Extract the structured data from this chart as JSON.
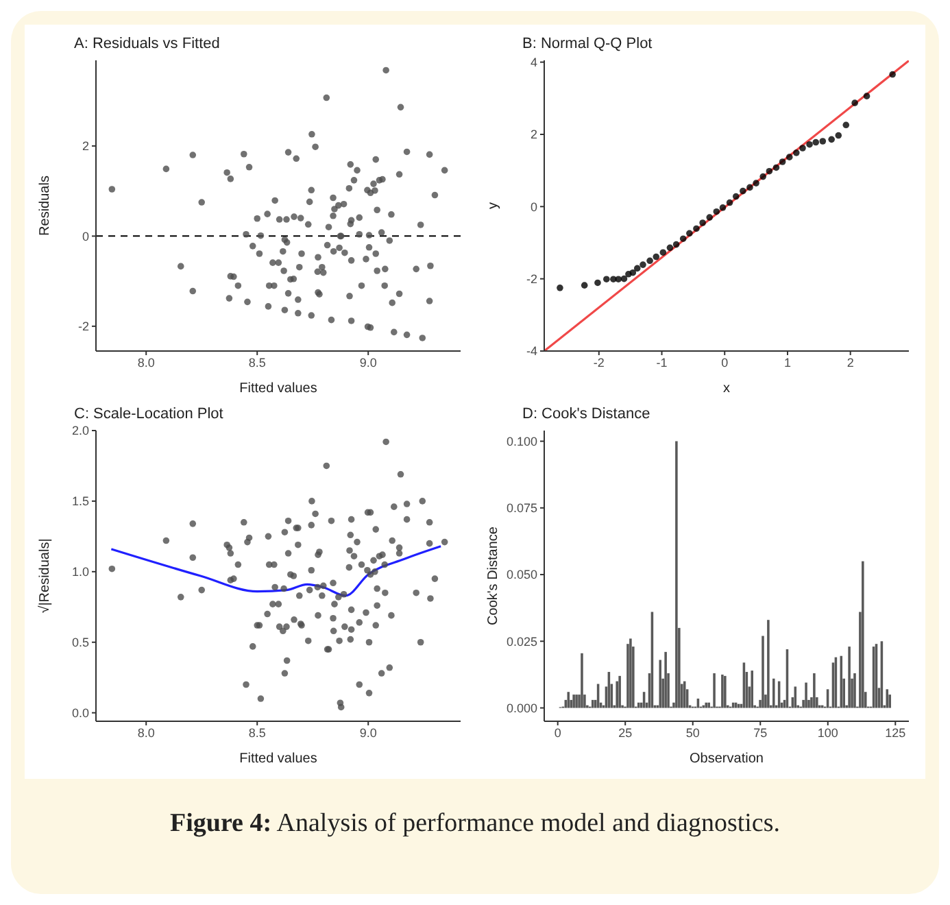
{
  "chart_data": [
    {
      "type": "scatter",
      "title": "A: Residuals vs Fitted",
      "xlabel": "Fitted values",
      "ylabel": "Residuals",
      "xlim": [
        7.774,
        9.416
      ],
      "ylim": [
        -2.55,
        3.9
      ],
      "xticks": [
        {
          "value": 8,
          "label": "8.0"
        },
        {
          "value": 8.5,
          "label": "8.5"
        },
        {
          "value": 9,
          "label": "9.0"
        }
      ],
      "yticks": [
        -2,
        0,
        2
      ],
      "grid": false,
      "legend": false,
      "marker": "circle",
      "ref_lines": [
        {
          "axis": "y",
          "value": 0,
          "color": "#000000",
          "line_style": "dashed"
        }
      ],
      "series": [
        {
          "color": "#4d4d4d",
          "x": [
            7.846,
            8.09,
            8.21,
            8.25,
            8.156,
            8.21,
            8.364,
            8.38,
            8.44,
            8.464,
            8.45,
            8.38,
            8.394,
            8.414,
            8.374,
            8.456,
            8.5,
            8.516,
            8.48,
            8.51,
            8.546,
            8.58,
            8.554,
            8.576,
            8.55,
            8.57,
            8.596,
            8.6,
            8.632,
            8.624,
            8.634,
            8.616,
            8.62,
            8.65,
            8.64,
            8.624,
            8.64,
            8.676,
            8.666,
            8.696,
            8.664,
            8.69,
            8.7,
            8.684,
            8.684,
            8.73,
            8.736,
            8.744,
            8.746,
            8.762,
            8.744,
            8.774,
            8.772,
            8.792,
            8.798,
            8.774,
            8.78,
            8.812,
            8.822,
            8.816,
            8.842,
            8.842,
            8.848,
            8.844,
            8.834,
            8.866,
            8.89,
            8.874,
            8.878,
            8.87,
            8.894,
            8.92,
            8.95,
            8.914,
            8.936,
            8.924,
            8.92,
            8.924,
            8.916,
            8.924,
            8.96,
            8.96,
            8.97,
            8.996,
            9.01,
            9.024,
            9.03,
            9.034,
            9.04,
            9.004,
            9.004,
            8.99,
            9.034,
            9.04,
            8.998,
            9.01,
            9.05,
            9.064,
            9.06,
            9.076,
            9.074,
            9.08,
            9.096,
            9.104,
            9.108,
            9.116,
            9.14,
            9.14,
            9.146,
            9.174,
            9.174,
            9.216,
            9.236,
            9.244,
            9.276,
            9.28,
            9.276,
            9.3,
            9.344
          ],
          "values": [
            1.04,
            1.49,
            1.8,
            0.75,
            -0.67,
            -1.22,
            1.41,
            1.27,
            1.82,
            1.53,
            0.04,
            -0.89,
            -0.9,
            -1.1,
            -1.38,
            -1.46,
            0.39,
            0.01,
            -0.22,
            -0.39,
            0.49,
            0.79,
            -1.1,
            -1.1,
            -1.56,
            -0.59,
            -0.59,
            0.37,
            0.37,
            -0.08,
            -0.14,
            -0.34,
            -0.77,
            -0.96,
            -1.27,
            -1.64,
            1.86,
            1.72,
            0.43,
            0.4,
            -0.95,
            -0.69,
            -0.39,
            -1.41,
            -1.71,
            0.26,
            0.76,
            1.02,
            2.26,
            1.98,
            -1.76,
            -0.47,
            -0.79,
            -0.69,
            -0.81,
            -1.25,
            -1.29,
            3.07,
            0.2,
            -0.2,
            0.85,
            0.45,
            0.6,
            -0.34,
            -1.86,
            0.68,
            0.71,
            0,
            0,
            -0.26,
            -0.37,
            1.59,
            1.46,
            1.06,
            1.24,
            0.35,
            0.27,
            -0.54,
            -1.33,
            -1.88,
            0.41,
            0.04,
            -1.1,
            1.02,
            0.96,
            1.16,
            1.01,
            1.7,
            0.58,
            0.02,
            -0.25,
            -0.51,
            -0.39,
            -0.77,
            -2.01,
            -2.03,
            1.24,
            1.26,
            0.08,
            -0.73,
            -1.1,
            3.68,
            -0.1,
            0.48,
            -1.48,
            -2.13,
            1.37,
            -1.28,
            2.86,
            1.87,
            -2.19,
            -0.73,
            0.25,
            -2.26,
            1.81,
            -0.66,
            -1.44,
            0.91,
            1.46
          ]
        }
      ]
    },
    {
      "type": "scatter",
      "title": "B: Normal Q-Q Plot",
      "xlabel": "x",
      "ylabel": "y",
      "xlim": [
        -2.87,
        2.93
      ],
      "ylim": [
        -4,
        4.05
      ],
      "xticks": [
        -2,
        -1,
        0,
        1,
        2
      ],
      "yticks": [
        -4,
        -2,
        0,
        2,
        4
      ],
      "grid": false,
      "legend": false,
      "marker": "circle",
      "series": [
        {
          "color": "#000000",
          "x": [
            -2.62,
            -2.23,
            -2.02,
            -1.88,
            -1.77,
            -1.69,
            -1.6,
            -1.53,
            -1.46,
            -1.39,
            -1.3,
            -1.19,
            -1.09,
            -0.98,
            -0.87,
            -0.77,
            -0.66,
            -0.56,
            -0.45,
            -0.35,
            -0.24,
            -0.13,
            -0.03,
            0.08,
            0.18,
            0.29,
            0.4,
            0.5,
            0.61,
            0.71,
            0.82,
            0.92,
            1.03,
            1.14,
            1.24,
            1.35,
            1.45,
            1.56,
            1.7,
            1.81,
            1.93,
            2.07,
            2.26,
            2.67
          ],
          "values": [
            -2.25,
            -2.18,
            -2.11,
            -2.01,
            -2.01,
            -2.01,
            -2.0,
            -1.87,
            -1.83,
            -1.71,
            -1.61,
            -1.5,
            -1.39,
            -1.27,
            -1.14,
            -1.05,
            -0.89,
            -0.74,
            -0.61,
            -0.45,
            -0.3,
            -0.14,
            -0.03,
            0.11,
            0.28,
            0.43,
            0.53,
            0.65,
            0.83,
            0.98,
            1.08,
            1.24,
            1.37,
            1.49,
            1.62,
            1.72,
            1.78,
            1.81,
            1.86,
            1.97,
            2.26,
            2.87,
            3.06,
            3.66
          ]
        },
        {
          "type": "line",
          "marker": "none",
          "color": "#f04848",
          "x": [
            -2.87,
            2.93
          ],
          "values": [
            -4,
            4.04
          ]
        }
      ]
    },
    {
      "type": "scatter",
      "title": "C: Scale-Location Plot",
      "xlabel": "Fitted values",
      "ylabel": "√|Residuals|",
      "xlim": [
        7.774,
        9.416
      ],
      "ylim": [
        -0.06,
        2.0
      ],
      "xticks": [
        {
          "value": 8,
          "label": "8.0"
        },
        {
          "value": 8.5,
          "label": "8.5"
        },
        {
          "value": 9,
          "label": "9.0"
        }
      ],
      "yticks": [
        {
          "value": 0,
          "label": "0.0"
        },
        {
          "value": 0.5,
          "label": "0.5"
        },
        {
          "value": 1,
          "label": "1.0"
        },
        {
          "value": 1.5,
          "label": "1.5"
        },
        {
          "value": 2,
          "label": "2.0"
        }
      ],
      "grid": false,
      "legend": false,
      "marker": "circle",
      "series": [
        {
          "color": "#4d4d4d",
          "x": [
            7.846,
            8.09,
            8.21,
            8.25,
            8.156,
            8.21,
            8.364,
            8.38,
            8.44,
            8.464,
            8.45,
            8.38,
            8.394,
            8.414,
            8.374,
            8.456,
            8.5,
            8.516,
            8.48,
            8.51,
            8.546,
            8.58,
            8.554,
            8.576,
            8.55,
            8.57,
            8.596,
            8.6,
            8.632,
            8.624,
            8.634,
            8.616,
            8.62,
            8.65,
            8.64,
            8.624,
            8.64,
            8.676,
            8.666,
            8.696,
            8.664,
            8.69,
            8.7,
            8.684,
            8.684,
            8.73,
            8.736,
            8.744,
            8.746,
            8.762,
            8.744,
            8.774,
            8.772,
            8.792,
            8.798,
            8.774,
            8.78,
            8.812,
            8.822,
            8.816,
            8.842,
            8.842,
            8.848,
            8.844,
            8.834,
            8.866,
            8.89,
            8.874,
            8.878,
            8.87,
            8.894,
            8.92,
            8.95,
            8.914,
            8.936,
            8.924,
            8.92,
            8.924,
            8.916,
            8.924,
            8.96,
            8.96,
            8.97,
            8.996,
            9.01,
            9.024,
            9.03,
            9.034,
            9.04,
            9.004,
            9.004,
            8.99,
            9.034,
            9.04,
            8.998,
            9.01,
            9.05,
            9.064,
            9.06,
            9.076,
            9.074,
            9.08,
            9.096,
            9.104,
            9.108,
            9.116,
            9.14,
            9.14,
            9.146,
            9.174,
            9.174,
            9.216,
            9.236,
            9.244,
            9.276,
            9.28,
            9.276,
            9.3,
            9.344
          ],
          "values": [
            1.02,
            1.22,
            1.34,
            0.87,
            0.82,
            1.1,
            1.19,
            1.13,
            1.35,
            1.24,
            0.2,
            0.94,
            0.95,
            1.05,
            1.17,
            1.21,
            0.62,
            0.1,
            0.47,
            0.62,
            0.7,
            0.89,
            1.05,
            1.05,
            1.25,
            0.77,
            0.77,
            0.61,
            0.61,
            0.28,
            0.37,
            0.58,
            0.88,
            0.98,
            1.13,
            1.28,
            1.36,
            1.31,
            0.66,
            0.63,
            0.97,
            0.83,
            0.62,
            1.19,
            1.31,
            0.51,
            0.87,
            1.01,
            1.5,
            1.41,
            1.33,
            0.69,
            0.89,
            0.83,
            0.9,
            1.12,
            1.14,
            1.75,
            0.45,
            0.45,
            0.92,
            0.67,
            0.77,
            0.58,
            1.36,
            0.82,
            0.84,
            0.07,
            0.04,
            0.51,
            0.61,
            1.26,
            1.21,
            1.03,
            1.11,
            0.59,
            0.52,
            0.73,
            1.15,
            1.37,
            0.64,
            0.2,
            1.05,
            1.01,
            0.98,
            1.08,
            1.0,
            1.3,
            0.76,
            0.14,
            0.5,
            0.71,
            0.62,
            0.88,
            1.42,
            1.42,
            1.11,
            1.12,
            0.28,
            0.85,
            1.05,
            1.92,
            0.32,
            0.69,
            1.22,
            1.46,
            1.17,
            1.13,
            1.69,
            1.37,
            1.48,
            0.85,
            0.5,
            1.5,
            1.35,
            0.81,
            1.2,
            0.95,
            1.21
          ]
        },
        {
          "type": "line",
          "marker": "none",
          "color": "#2020ff",
          "x": [
            7.843,
            8.245,
            8.5,
            8.633,
            8.725,
            8.796,
            8.898,
            9.0,
            9.163,
            9.327
          ],
          "values": [
            1.16,
            0.97,
            0.86,
            0.87,
            0.91,
            0.89,
            0.83,
            0.98,
            1.09,
            1.18
          ]
        }
      ]
    },
    {
      "type": "bar",
      "title": "D: Cook's Distance",
      "xlabel": "Observation",
      "ylabel": "Cook's Distance",
      "xlim": [
        -5,
        130
      ],
      "ylim": [
        -0.005,
        0.104
      ],
      "xticks": [
        0,
        25,
        50,
        75,
        100,
        125
      ],
      "yticks": [
        {
          "value": 0,
          "label": "0.000"
        },
        {
          "value": 0.025,
          "label": "0.025"
        },
        {
          "value": 0.05,
          "label": "0.050"
        },
        {
          "value": 0.075,
          "label": "0.075"
        },
        {
          "value": 0.1,
          "label": "0.100"
        }
      ],
      "grid": false,
      "legend": false,
      "annotations": [
        "Figure 4: Analysis of performance model and diagnostics."
      ],
      "x": [
        1,
        2,
        3,
        4,
        5,
        6,
        7,
        8,
        9,
        10,
        11,
        12,
        13,
        14,
        15,
        16,
        17,
        18,
        19,
        20,
        21,
        22,
        23,
        24,
        25,
        26,
        27,
        28,
        29,
        30,
        31,
        32,
        33,
        34,
        35,
        36,
        37,
        38,
        39,
        40,
        41,
        42,
        43,
        44,
        45,
        46,
        47,
        48,
        49,
        50,
        51,
        52,
        53,
        54,
        55,
        56,
        57,
        58,
        59,
        60,
        61,
        62,
        63,
        64,
        65,
        66,
        67,
        68,
        69,
        70,
        71,
        72,
        73,
        74,
        75,
        76,
        77,
        78,
        79,
        80,
        81,
        82,
        83,
        84,
        85,
        86,
        87,
        88,
        89,
        90,
        91,
        92,
        93,
        94,
        95,
        96,
        97,
        98,
        99,
        100,
        101,
        102,
        103,
        104,
        105,
        106,
        107,
        108,
        109,
        110,
        111,
        112,
        113,
        114,
        115,
        116,
        117,
        118,
        119,
        120,
        121,
        122,
        123
      ],
      "series": [
        {
          "color": "#595959",
          "values": [
            0.0003,
            0.0005,
            0.003,
            0.006,
            0.003,
            0.005,
            0.005,
            0.005,
            0.0205,
            0.005,
            0.001,
            0.0005,
            0.003,
            0.003,
            0.009,
            0.002,
            0.001,
            0.008,
            0.0135,
            0.009,
            0.001,
            0.01,
            0.012,
            0.001,
            0.0005,
            0.024,
            0.026,
            0.023,
            0.0005,
            0.002,
            0.002,
            0.006,
            0.002,
            0.013,
            0.036,
            0.001,
            0.001,
            0.018,
            0.011,
            0.021,
            0.013,
            0.0005,
            0.002,
            0.1,
            0.03,
            0.009,
            0.01,
            0.007,
            0.001,
            0.0005,
            0.0005,
            0.0035,
            0.0005,
            0.001,
            0.002,
            0.002,
            0.0005,
            0.013,
            0.0005,
            0.0005,
            0.0125,
            0.012,
            0.001,
            0.0005,
            0.002,
            0.002,
            0.0015,
            0.0015,
            0.017,
            0.0135,
            0.008,
            0.014,
            0.001,
            0.0005,
            0.003,
            0.027,
            0.005,
            0.033,
            0.001,
            0.011,
            0.001,
            0.01,
            0.002,
            0.003,
            0.022,
            0.0005,
            0.004,
            0.008,
            0.001,
            0.0005,
            0.003,
            0.0095,
            0.003,
            0.004,
            0.013,
            0.004,
            0.001,
            0.001,
            0.0005,
            0.007,
            0.0005,
            0.017,
            0.019,
            0.0005,
            0.0195,
            0.011,
            0.001,
            0.023,
            0.011,
            0.013,
            0.0005,
            0.036,
            0.055,
            0.006,
            0.0005,
            0.0005,
            0.023,
            0.024,
            0.0075,
            0.025,
            0.001,
            0.007,
            0.005
          ]
        }
      ]
    }
  ]
}
